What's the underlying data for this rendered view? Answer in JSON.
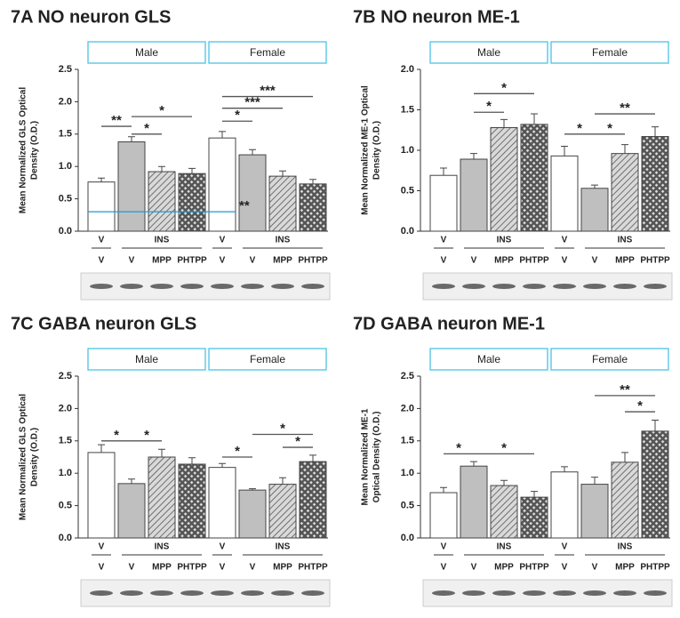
{
  "chart_data": [
    {
      "type": "bar",
      "title": "7A  NO neuron GLS",
      "ylabel": [
        "Mean Normalized GLS Optical",
        "Density (O.D.)"
      ],
      "groups": [
        "Male",
        "Female"
      ],
      "x_groups": [
        "V",
        "INS",
        "V",
        "INS"
      ],
      "categories": [
        "V",
        "V",
        "MPP",
        "PHTPP",
        "V",
        "V",
        "MPP",
        "PHTPP"
      ],
      "values": [
        0.76,
        1.38,
        0.92,
        0.89,
        1.44,
        1.18,
        0.85,
        0.73
      ],
      "errors": [
        0.06,
        0.08,
        0.08,
        0.08,
        0.1,
        0.08,
        0.08,
        0.07
      ],
      "fills": [
        "white",
        "lightgray",
        "hatch",
        "crosshatch",
        "white",
        "lightgray",
        "hatch",
        "crosshatch"
      ],
      "ylim": [
        0,
        2.5
      ],
      "yticks": [
        {
          "value": 0,
          "label": "0.0"
        },
        0.5,
        {
          "value": 1,
          "label": "1.0"
        },
        1.5,
        {
          "value": 2,
          "label": "2.0"
        },
        2.5
      ],
      "comparisons": [
        {
          "from": 0,
          "to": 1,
          "y": 1.62,
          "text": "**"
        },
        {
          "from": 1,
          "to": 2,
          "y": 1.5,
          "text": "*"
        },
        {
          "from": 1,
          "to": 3,
          "y": 1.77,
          "text": "*"
        },
        {
          "from": 4,
          "to": 5,
          "y": 1.7,
          "text": "*"
        },
        {
          "from": 4,
          "to": 6,
          "y": 1.9,
          "text": "***"
        },
        {
          "from": 4,
          "to": 7,
          "y": 2.08,
          "text": "***"
        },
        {
          "from": 0,
          "to": 4,
          "y": 0.3,
          "text": "**",
          "color": "#1f9bd1"
        }
      ]
    },
    {
      "type": "bar",
      "title": "7B  NO neuron ME-1",
      "ylabel": [
        "Mean Normalized ME-1 Optical",
        "Density (O.D.)"
      ],
      "groups": [
        "Male",
        "Female"
      ],
      "x_groups": [
        "V",
        "INS",
        "V",
        "INS"
      ],
      "categories": [
        "V",
        "V",
        "MPP",
        "PHTPP",
        "V",
        "V",
        "MPP",
        "PHTPP"
      ],
      "values": [
        0.69,
        0.89,
        1.28,
        1.32,
        0.93,
        0.53,
        0.96,
        1.17
      ],
      "errors": [
        0.09,
        0.07,
        0.1,
        0.13,
        0.12,
        0.04,
        0.11,
        0.12
      ],
      "fills": [
        "white",
        "lightgray",
        "hatch",
        "crosshatch",
        "white",
        "lightgray",
        "hatch",
        "crosshatch"
      ],
      "ylim": [
        0,
        2
      ],
      "yticks": [
        {
          "value": 0,
          "label": "0.0"
        },
        0.5,
        {
          "value": 1,
          "label": "1.0"
        },
        1.5,
        {
          "value": 2,
          "label": "2.0"
        }
      ],
      "comparisons": [
        {
          "from": 1,
          "to": 2,
          "y": 1.47,
          "text": "*"
        },
        {
          "from": 1,
          "to": 3,
          "y": 1.7,
          "text": "*"
        },
        {
          "from": 4,
          "to": 5,
          "y": 1.2,
          "text": "*"
        },
        {
          "from": 5,
          "to": 6,
          "y": 1.2,
          "text": "*"
        },
        {
          "from": 5,
          "to": 7,
          "y": 1.45,
          "text": "**"
        }
      ]
    },
    {
      "type": "bar",
      "title": "7C   GABA neuron GLS",
      "ylabel": [
        "Mean Normalized GLS Optical",
        "Density (O.D.)"
      ],
      "groups": [
        "Male",
        "Female"
      ],
      "x_groups": [
        "V",
        "INS",
        "V",
        "INS"
      ],
      "categories": [
        "V",
        "V",
        "MPP",
        "PHTPP",
        "V",
        "V",
        "MPP",
        "PHTPP"
      ],
      "values": [
        1.32,
        0.84,
        1.25,
        1.14,
        1.09,
        0.74,
        0.83,
        1.18
      ],
      "errors": [
        0.12,
        0.07,
        0.12,
        0.1,
        0.06,
        0.02,
        0.1,
        0.1
      ],
      "fills": [
        "white",
        "lightgray",
        "hatch",
        "crosshatch",
        "white",
        "lightgray",
        "hatch",
        "crosshatch"
      ],
      "ylim": [
        0,
        2.5
      ],
      "yticks": [
        {
          "value": 0,
          "label": "0.0"
        },
        0.5,
        {
          "value": 1,
          "label": "1.0"
        },
        1.5,
        {
          "value": 2,
          "label": "2.0"
        },
        2.5
      ],
      "comparisons": [
        {
          "from": 0,
          "to": 1,
          "y": 1.5,
          "text": "*"
        },
        {
          "from": 1,
          "to": 2,
          "y": 1.5,
          "text": "*"
        },
        {
          "from": 4,
          "to": 5,
          "y": 1.25,
          "text": "*"
        },
        {
          "from": 5,
          "to": 7,
          "y": 1.6,
          "text": "*"
        },
        {
          "from": 6,
          "to": 7,
          "y": 1.4,
          "text": "*"
        }
      ]
    },
    {
      "type": "bar",
      "title": "7D   GABA neuron ME-1",
      "ylabel": [
        "Mean Normalized ME-1",
        "Optical Density (O.D.)"
      ],
      "groups": [
        "Male",
        "Female"
      ],
      "x_groups": [
        "V",
        "INS",
        "V",
        "INS"
      ],
      "categories": [
        "V",
        "V",
        "MPP",
        "PHTPP",
        "V",
        "V",
        "MPP",
        "PHTPP"
      ],
      "values": [
        0.7,
        1.11,
        0.81,
        0.63,
        1.02,
        0.83,
        1.17,
        1.65
      ],
      "errors": [
        0.08,
        0.07,
        0.08,
        0.09,
        0.08,
        0.11,
        0.15,
        0.17
      ],
      "fills": [
        "white",
        "lightgray",
        "hatch",
        "crosshatch",
        "white",
        "lightgray",
        "hatch",
        "crosshatch"
      ],
      "ylim": [
        0,
        2.5
      ],
      "yticks": [
        {
          "value": 0,
          "label": "0.0"
        },
        0.5,
        {
          "value": 1,
          "label": "1.0"
        },
        1.5,
        {
          "value": 2,
          "label": "2.0"
        },
        2.5
      ],
      "comparisons": [
        {
          "from": 0,
          "to": 1,
          "y": 1.3,
          "text": "*"
        },
        {
          "from": 1,
          "to": 3,
          "y": 1.3,
          "text": "*"
        },
        {
          "from": 5,
          "to": 7,
          "y": 2.2,
          "text": "**"
        },
        {
          "from": 6,
          "to": 7,
          "y": 1.95,
          "text": "*"
        }
      ]
    }
  ]
}
